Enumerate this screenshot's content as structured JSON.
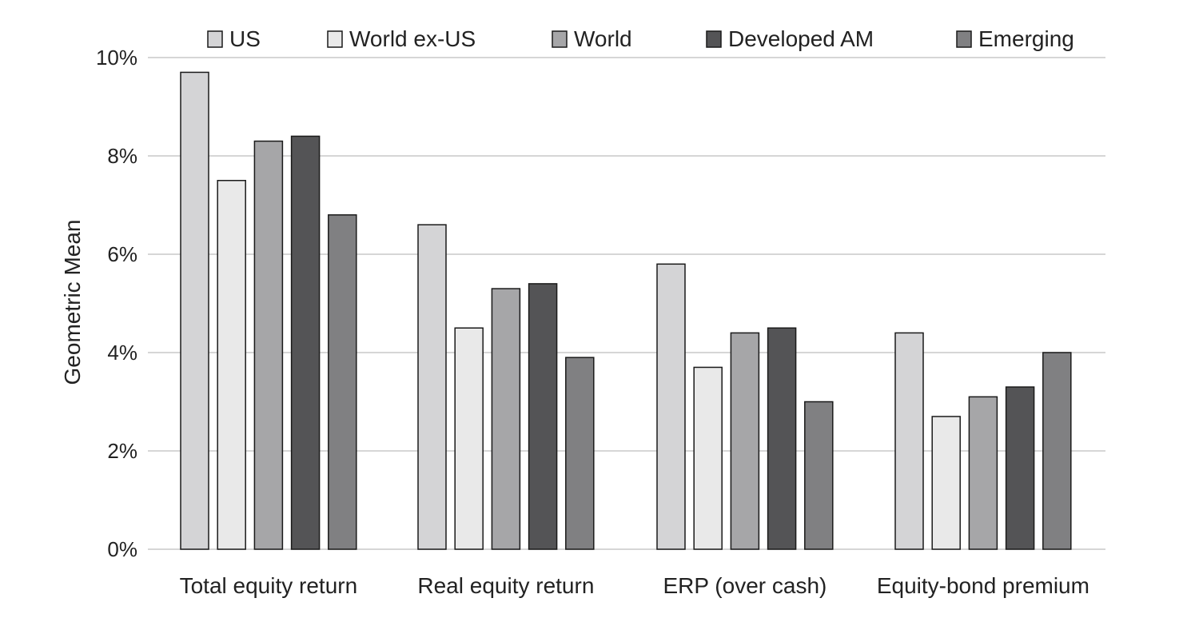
{
  "chart_data": {
    "type": "bar",
    "title": "",
    "xlabel": "",
    "ylabel": "Geometric Mean",
    "ylim": [
      0,
      10
    ],
    "yticks": [
      "0%",
      "2%",
      "4%",
      "6%",
      "8%",
      "10%"
    ],
    "ytick_values": [
      0,
      2,
      4,
      6,
      8,
      10
    ],
    "grid": true,
    "legend_position": "top",
    "categories": [
      "Total equity return",
      "Real equity return",
      "ERP (over cash)",
      "Equity-bond premium"
    ],
    "series": [
      {
        "name": "US",
        "color": "#d4d4d6",
        "values": [
          9.7,
          6.6,
          5.8,
          4.4
        ]
      },
      {
        "name": "World ex-US",
        "color": "#e9e9e9",
        "values": [
          7.5,
          4.5,
          3.7,
          2.7
        ]
      },
      {
        "name": "World",
        "color": "#a6a6a8",
        "values": [
          8.3,
          5.3,
          4.4,
          3.1
        ]
      },
      {
        "name": "Developed AM",
        "color": "#545456",
        "values": [
          8.4,
          5.4,
          4.5,
          3.3
        ]
      },
      {
        "name": "Emerging",
        "color": "#808082",
        "values": [
          6.8,
          3.9,
          3.0,
          4.0
        ]
      }
    ]
  }
}
